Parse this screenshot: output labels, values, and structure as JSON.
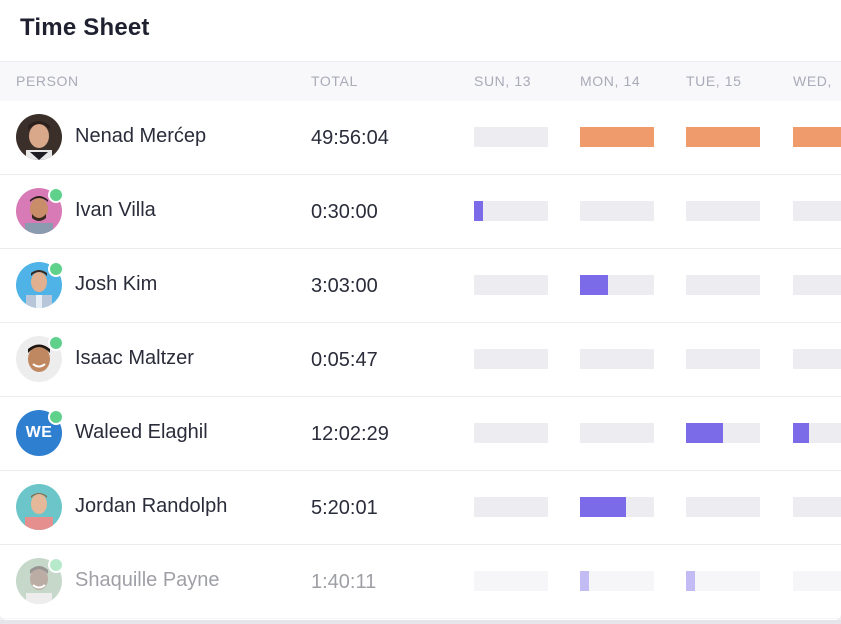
{
  "title": "Time Sheet",
  "columns": {
    "person": "PERSON",
    "total": "TOTAL",
    "days": [
      "SUN, 13",
      "MON, 14",
      "TUE, 15",
      "WED,"
    ]
  },
  "colors": {
    "over": "#ef9b6c",
    "tracked": "#7b6be8",
    "empty": "#ececf1",
    "online": "#5fd18a"
  },
  "people": [
    {
      "name": "Nenad Merćep",
      "total": "49:56:04",
      "avatar": "photo-dark-hair",
      "online": false,
      "initials": "",
      "days": [
        0,
        1,
        1,
        1
      ],
      "kind": "over"
    },
    {
      "name": "Ivan Villa",
      "total": "0:30:00",
      "avatar": "photo-pink-bg",
      "online": true,
      "initials": "",
      "days": [
        0.12,
        0,
        0,
        0
      ],
      "kind": "tracked"
    },
    {
      "name": "Josh Kim",
      "total": "3:03:00",
      "avatar": "photo-blue-bg",
      "online": true,
      "initials": "",
      "days": [
        0,
        0.38,
        0,
        0
      ],
      "kind": "tracked"
    },
    {
      "name": "Isaac Maltzer",
      "total": "0:05:47",
      "avatar": "photo-smiling",
      "online": true,
      "initials": "",
      "days": [
        0,
        0,
        0,
        0
      ],
      "kind": "tracked"
    },
    {
      "name": "Waleed Elaghil",
      "total": "12:02:29",
      "avatar": "initials",
      "online": true,
      "initials": "WE",
      "days": [
        0,
        0,
        0.5,
        0.22
      ],
      "kind": "tracked"
    },
    {
      "name": "Jordan Randolph",
      "total": "5:20:01",
      "avatar": "photo-teal-bg",
      "online": false,
      "initials": "",
      "days": [
        0,
        0.62,
        0,
        0
      ],
      "kind": "tracked"
    },
    {
      "name": "Shaquille Payne",
      "total": "1:40:11",
      "avatar": "photo-green-bg",
      "online": true,
      "initials": "",
      "days": [
        0,
        0.12,
        0.12,
        0
      ],
      "kind": "tracked",
      "faded": true
    }
  ]
}
